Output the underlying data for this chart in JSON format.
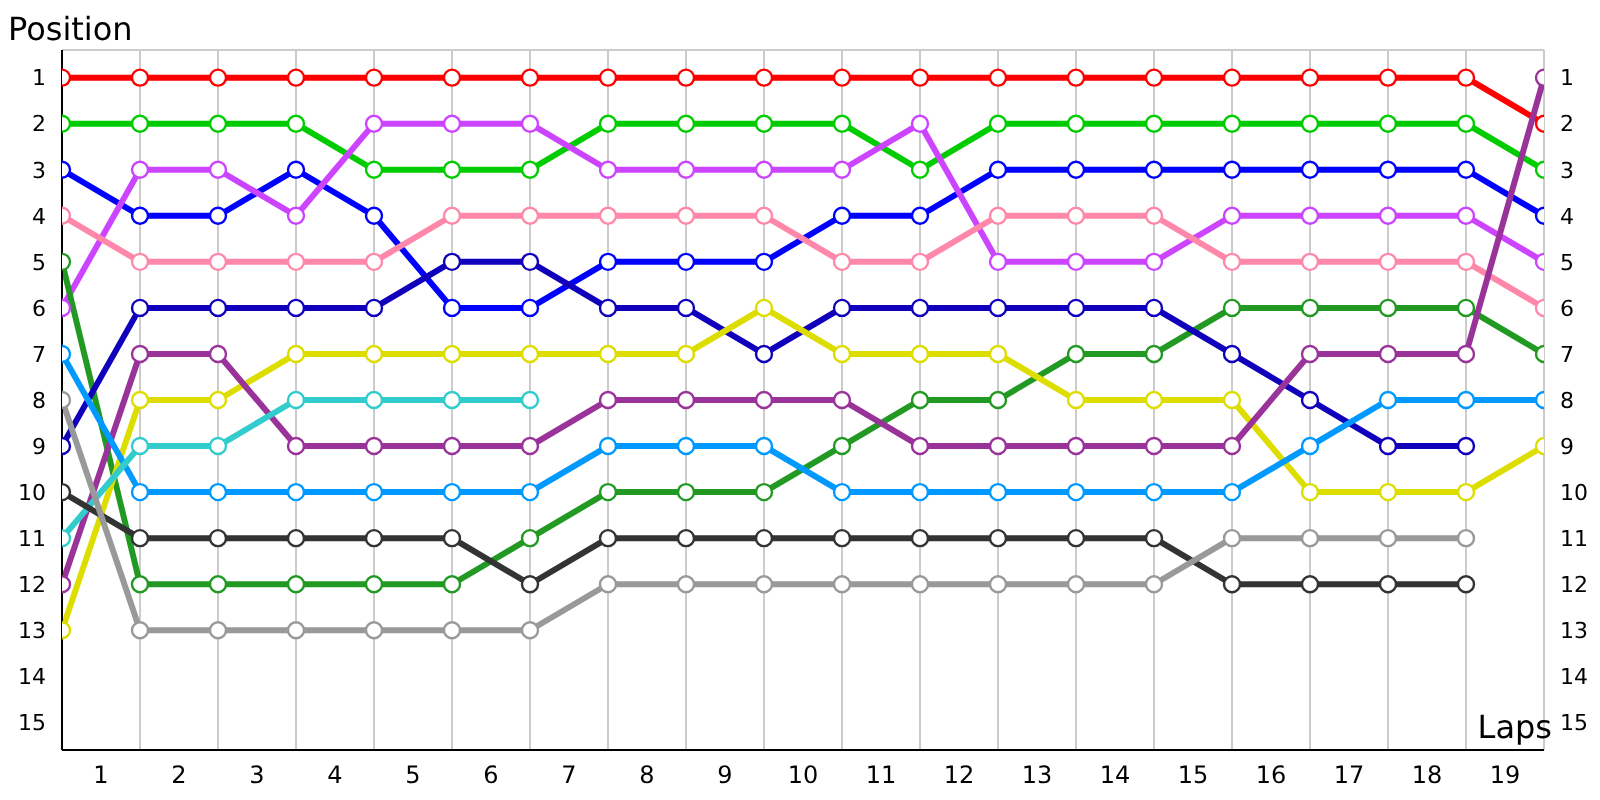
{
  "chart_data": {
    "type": "line",
    "ylabel": "Position",
    "xlabel": "Laps",
    "marker": "circle",
    "grid": true,
    "legend": false,
    "x": [
      0,
      1,
      2,
      3,
      4,
      5,
      6,
      7,
      8,
      9,
      10,
      11,
      12,
      13,
      14,
      15,
      16,
      17,
      18,
      19
    ],
    "xlim": [
      0,
      19
    ],
    "xticks": [
      {
        "value": 0,
        "label": null
      },
      {
        "value": 0.5,
        "label": "1"
      },
      {
        "value": 1,
        "label": null
      },
      {
        "value": 1.5,
        "label": "2"
      },
      {
        "value": 2,
        "label": null
      },
      {
        "value": 2.5,
        "label": "3"
      },
      {
        "value": 3,
        "label": null
      },
      {
        "value": 3.5,
        "label": "4"
      },
      {
        "value": 4,
        "label": null
      },
      {
        "value": 4.5,
        "label": "5"
      },
      {
        "value": 5,
        "label": null
      },
      {
        "value": 5.5,
        "label": "6"
      },
      {
        "value": 6,
        "label": null
      },
      {
        "value": 6.5,
        "label": "7"
      },
      {
        "value": 7,
        "label": null
      },
      {
        "value": 7.5,
        "label": "8"
      },
      {
        "value": 8,
        "label": null
      },
      {
        "value": 8.5,
        "label": "9"
      },
      {
        "value": 9,
        "label": null
      },
      {
        "value": 9.5,
        "label": "10"
      },
      {
        "value": 10,
        "label": null
      },
      {
        "value": 10.5,
        "label": "11"
      },
      {
        "value": 11,
        "label": null
      },
      {
        "value": 11.5,
        "label": "12"
      },
      {
        "value": 12,
        "label": null
      },
      {
        "value": 12.5,
        "label": "13"
      },
      {
        "value": 13,
        "label": null
      },
      {
        "value": 13.5,
        "label": "14"
      },
      {
        "value": 14,
        "label": null
      },
      {
        "value": 14.5,
        "label": "15"
      },
      {
        "value": 15,
        "label": null
      },
      {
        "value": 15.5,
        "label": "16"
      },
      {
        "value": 16,
        "label": null
      },
      {
        "value": 16.5,
        "label": "17"
      },
      {
        "value": 17,
        "label": null
      },
      {
        "value": 17.5,
        "label": "18"
      },
      {
        "value": 18,
        "label": null
      },
      {
        "value": 18.5,
        "label": "19"
      },
      {
        "value": 19,
        "label": null
      }
    ],
    "ylim": [
      15.6,
      0.4
    ],
    "yticks": [
      1,
      2,
      3,
      4,
      5,
      6,
      7,
      8,
      9,
      10,
      11,
      12,
      13,
      14,
      15
    ],
    "y2lim": [
      15.6,
      0.4
    ],
    "y2ticks": [
      1,
      2,
      3,
      4,
      5,
      6,
      7,
      8,
      9,
      10,
      11,
      12,
      13,
      14,
      15
    ],
    "series": [
      {
        "color": "#ff0000",
        "values": [
          1,
          1,
          1,
          1,
          1,
          1,
          1,
          1,
          1,
          1,
          1,
          1,
          1,
          1,
          1,
          1,
          1,
          1,
          1,
          2
        ]
      },
      {
        "color": "#00cc00",
        "values": [
          2,
          2,
          2,
          2,
          3,
          3,
          3,
          2,
          2,
          2,
          2,
          3,
          2,
          2,
          2,
          2,
          2,
          2,
          2,
          3
        ]
      },
      {
        "color": "#0000ff",
        "values": [
          3,
          4,
          4,
          3,
          4,
          6,
          6,
          5,
          5,
          5,
          4,
          4,
          3,
          3,
          3,
          3,
          3,
          3,
          3,
          4
        ]
      },
      {
        "color": "#cc44ff",
        "values": [
          6,
          3,
          3,
          4,
          2,
          2,
          2,
          3,
          3,
          3,
          3,
          2,
          5,
          5,
          5,
          4,
          4,
          4,
          4,
          5
        ]
      },
      {
        "color": "#ff88aa",
        "values": [
          4,
          5,
          5,
          5,
          5,
          4,
          4,
          4,
          4,
          4,
          5,
          5,
          4,
          4,
          4,
          5,
          5,
          5,
          5,
          6
        ]
      },
      {
        "color": "#229922",
        "values": [
          5,
          12,
          12,
          12,
          12,
          12,
          11,
          10,
          10,
          10,
          9,
          8,
          8,
          7,
          7,
          6,
          6,
          6,
          6,
          7
        ]
      },
      {
        "color": "#1100bb",
        "values": [
          9,
          6,
          6,
          6,
          6,
          5,
          5,
          6,
          6,
          7,
          6,
          6,
          6,
          6,
          6,
          7,
          8,
          9,
          9,
          null
        ]
      },
      {
        "color": "#dddd00",
        "values": [
          13,
          8,
          8,
          7,
          7,
          7,
          7,
          7,
          7,
          6,
          7,
          7,
          7,
          8,
          8,
          8,
          10,
          10,
          10,
          9
        ]
      },
      {
        "color": "#993399",
        "values": [
          12,
          7,
          7,
          9,
          9,
          9,
          9,
          8,
          8,
          8,
          8,
          9,
          9,
          9,
          9,
          9,
          7,
          7,
          7,
          1
        ]
      },
      {
        "color": "#0099ff",
        "values": [
          7,
          10,
          10,
          10,
          10,
          10,
          10,
          9,
          9,
          9,
          10,
          10,
          10,
          10,
          10,
          10,
          9,
          8,
          8,
          8
        ]
      },
      {
        "color": "#33cccc",
        "values": [
          11,
          9,
          9,
          8,
          8,
          8,
          8,
          null,
          null,
          null,
          null,
          null,
          null,
          null,
          null,
          null,
          null,
          null,
          null,
          null
        ]
      },
      {
        "color": "#333333",
        "values": [
          10,
          11,
          11,
          11,
          11,
          11,
          12,
          11,
          11,
          11,
          11,
          11,
          11,
          11,
          11,
          12,
          12,
          12,
          12,
          null
        ]
      },
      {
        "color": "#999999",
        "values": [
          8,
          13,
          13,
          13,
          13,
          13,
          13,
          12,
          12,
          12,
          12,
          12,
          12,
          12,
          12,
          11,
          11,
          11,
          11,
          null
        ]
      }
    ]
  }
}
